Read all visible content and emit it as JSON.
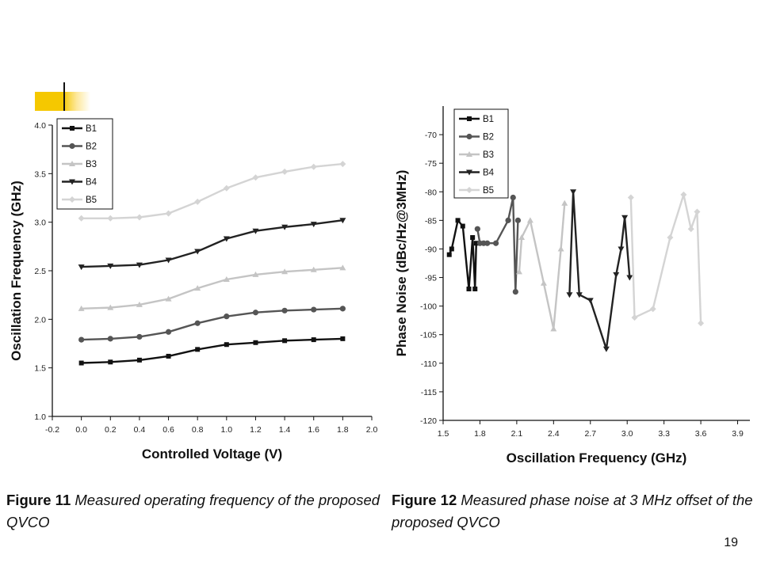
{
  "slide": {
    "page_number": "19",
    "caption1": {
      "label": "Figure 11",
      "text": "Measured operating frequency of the proposed QVCO"
    },
    "caption2": {
      "label": "Figure 12",
      "text": "Measured phase noise at 3 MHz offset of the proposed QVCO"
    }
  },
  "colors": {
    "accent": "#f5c800"
  },
  "chart_data": [
    {
      "type": "line",
      "xlabel": "Controlled Voltage (V)",
      "ylabel": "Oscillation Frequency (GHz)",
      "xlim": [
        -0.2,
        2.0
      ],
      "ylim": [
        1.0,
        4.0
      ],
      "xticks": [
        "-0.2",
        "0.0",
        "0.2",
        "0.4",
        "0.6",
        "0.8",
        "1.0",
        "1.2",
        "1.4",
        "1.6",
        "1.8",
        "2.0"
      ],
      "yticks": [
        "1.0",
        "1.5",
        "2.0",
        "2.5",
        "3.0",
        "3.5",
        "4.0"
      ],
      "grid": false,
      "legend": "top-left",
      "x": [
        0.0,
        0.2,
        0.4,
        0.6,
        0.8,
        1.0,
        1.2,
        1.4,
        1.6,
        1.8
      ],
      "series": [
        {
          "name": "B1",
          "marker": "square",
          "color": "#111111",
          "values": [
            1.55,
            1.56,
            1.58,
            1.62,
            1.69,
            1.74,
            1.76,
            1.78,
            1.79,
            1.8
          ]
        },
        {
          "name": "B2",
          "marker": "circle",
          "color": "#555555",
          "values": [
            1.79,
            1.8,
            1.82,
            1.87,
            1.96,
            2.03,
            2.07,
            2.09,
            2.1,
            2.11
          ]
        },
        {
          "name": "B3",
          "marker": "triangle-up",
          "color": "#c4c4c4",
          "values": [
            2.11,
            2.12,
            2.15,
            2.21,
            2.32,
            2.41,
            2.46,
            2.49,
            2.51,
            2.53
          ]
        },
        {
          "name": "B4",
          "marker": "triangle-down",
          "color": "#222222",
          "values": [
            2.54,
            2.55,
            2.56,
            2.61,
            2.7,
            2.83,
            2.91,
            2.95,
            2.98,
            3.02
          ]
        },
        {
          "name": "B5",
          "marker": "diamond",
          "color": "#d4d4d4",
          "values": [
            3.04,
            3.04,
            3.05,
            3.09,
            3.21,
            3.35,
            3.46,
            3.52,
            3.57,
            3.6
          ]
        }
      ]
    },
    {
      "type": "line",
      "xlabel": "Oscillation Frequency (GHz)",
      "ylabel": "Phase Noise (dBc/Hz@3MHz)",
      "xlim": [
        1.5,
        4.0
      ],
      "ylim": [
        -120,
        -65
      ],
      "xticks": [
        "1.5",
        "1.8",
        "2.1",
        "2.4",
        "2.7",
        "3.0",
        "3.3",
        "3.6",
        "3.9"
      ],
      "yticks": [
        "-70",
        "-75",
        "-80",
        "-85",
        "-90",
        "-95",
        "-100",
        "-105",
        "-110",
        "-115",
        "-120"
      ],
      "grid": false,
      "legend": "top-left",
      "series": [
        {
          "name": "B1",
          "marker": "square",
          "color": "#111111",
          "points": [
            [
              1.55,
              -91
            ],
            [
              1.57,
              -90
            ],
            [
              1.62,
              -85
            ],
            [
              1.66,
              -86
            ],
            [
              1.71,
              -97
            ],
            [
              1.74,
              -88
            ],
            [
              1.76,
              -97
            ],
            [
              1.77,
              -89
            ]
          ]
        },
        {
          "name": "B2",
          "marker": "circle",
          "color": "#555555",
          "points": [
            [
              1.78,
              -86.5
            ],
            [
              1.8,
              -89
            ],
            [
              1.83,
              -89
            ],
            [
              1.86,
              -89
            ],
            [
              1.93,
              -89
            ],
            [
              2.03,
              -85
            ],
            [
              2.07,
              -81
            ],
            [
              2.09,
              -97.5
            ],
            [
              2.11,
              -85
            ]
          ]
        },
        {
          "name": "B3",
          "marker": "triangle-up",
          "color": "#c4c4c4",
          "points": [
            [
              2.12,
              -94
            ],
            [
              2.14,
              -88
            ],
            [
              2.21,
              -85
            ],
            [
              2.32,
              -96
            ],
            [
              2.4,
              -104
            ],
            [
              2.46,
              -90
            ],
            [
              2.49,
              -82
            ]
          ]
        },
        {
          "name": "B4",
          "marker": "triangle-down",
          "color": "#222222",
          "points": [
            [
              2.53,
              -98
            ],
            [
              2.56,
              -80
            ],
            [
              2.61,
              -98
            ],
            [
              2.7,
              -99
            ],
            [
              2.83,
              -107.5
            ],
            [
              2.91,
              -94.5
            ],
            [
              2.95,
              -90
            ],
            [
              2.98,
              -84.5
            ],
            [
              3.02,
              -95
            ]
          ]
        },
        {
          "name": "B5",
          "marker": "diamond",
          "color": "#d4d4d4",
          "points": [
            [
              3.03,
              -81
            ],
            [
              3.06,
              -102
            ],
            [
              3.21,
              -100.5
            ],
            [
              3.35,
              -88
            ],
            [
              3.46,
              -80.5
            ],
            [
              3.52,
              -86.5
            ],
            [
              3.57,
              -83.5
            ],
            [
              3.6,
              -103
            ]
          ]
        }
      ]
    }
  ]
}
